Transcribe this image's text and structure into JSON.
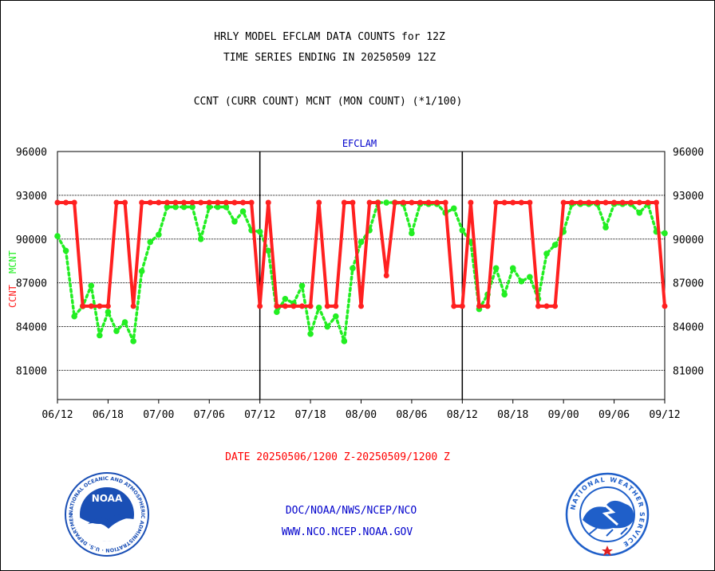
{
  "header": {
    "line1": "HRLY MODEL EFCLAM DATA COUNTS for 12Z",
    "line2": "TIME SERIES ENDING IN 20250509 12Z",
    "line3": "CCNT (CURR COUNT) MCNT (MON COUNT) (*1/100)"
  },
  "footer": {
    "date_range": "DATE 20250506/1200 Z-20250509/1200 Z",
    "org_path": "DOC/NOAA/NWS/NCEP/NCO",
    "website": "WWW.NCO.NCEP.NOAA.GOV"
  },
  "logos": {
    "left": {
      "name": "noaa-logo",
      "center_text": "NOAA",
      "ring_text": "NATIONAL OCEANIC AND ATMOSPHERIC ADMINISTRATION · U.S. DEPARTMENT OF COMMERCE"
    },
    "right": {
      "name": "nws-logo",
      "ring_text": "NATIONAL WEATHER SERVICE"
    }
  },
  "colors": {
    "ccnt": "#ff2020",
    "mcnt": "#22ee22",
    "panel_title": "#0000cc",
    "date_text": "#ff0000",
    "footer_text": "#0000cc",
    "noaa_blue": "#1a4fb5",
    "nws_blue": "#1f5fc9"
  },
  "chart_data": {
    "type": "line",
    "panel_title": "EFCLAM",
    "ylabel_ccnt": "CCNT",
    "ylabel_mcnt": "MCNT",
    "ylim": [
      79000,
      96000
    ],
    "yticks": [
      81000,
      84000,
      87000,
      90000,
      93000,
      96000
    ],
    "ytick_labels": [
      "81000",
      "84000",
      "87000",
      "90000",
      "93000",
      "96000"
    ],
    "xticks": [
      "06/12",
      "06/18",
      "07/00",
      "07/06",
      "07/12",
      "07/18",
      "08/00",
      "08/06",
      "08/12",
      "08/18",
      "09/00",
      "09/06",
      "09/12"
    ],
    "x_range_hours": [
      0,
      72
    ],
    "day_dividers_hours": [
      24,
      48
    ],
    "grid": "horizontal dotted",
    "series": [
      {
        "name": "CCNT",
        "values": [
          92500,
          92500,
          92500,
          85400,
          85400,
          85400,
          85400,
          92500,
          92500,
          85400,
          92500,
          92500,
          92500,
          92500,
          92500,
          92500,
          92500,
          92500,
          92500,
          92500,
          92500,
          92500,
          92500,
          92500,
          85400,
          92500,
          85400,
          85400,
          85400,
          85400,
          85400,
          92500,
          85400,
          85400,
          92500,
          92500,
          85400,
          92500,
          92500,
          87500,
          92500,
          92500,
          92500,
          92500,
          92500,
          92500,
          92500,
          85400,
          85400,
          92500,
          85400,
          85400,
          92500,
          92500,
          92500,
          92500,
          92500,
          85400,
          85400,
          85400,
          92500,
          92500,
          92500,
          92500,
          92500,
          92500,
          92500,
          92500,
          92500,
          92500,
          92500,
          92500,
          85400
        ]
      },
      {
        "name": "MCNT",
        "values": [
          90200,
          89200,
          84700,
          85400,
          86800,
          83400,
          85000,
          83700,
          84300,
          83000,
          87800,
          89800,
          90300,
          92200,
          92200,
          92200,
          92200,
          90000,
          92200,
          92200,
          92200,
          91200,
          91900,
          90600,
          90500,
          89200,
          85000,
          85900,
          85600,
          86800,
          83500,
          85300,
          84000,
          84700,
          83000,
          88000,
          89800,
          90600,
          92500,
          92500,
          92500,
          92400,
          90400,
          92400,
          92400,
          92400,
          91800,
          92100,
          90600,
          89800,
          85200,
          86200,
          88000,
          86200,
          88000,
          87100,
          87400,
          85900,
          89000,
          89600,
          90500,
          92400,
          92400,
          92400,
          92400,
          90800,
          92400,
          92400,
          92400,
          91800,
          92400,
          90500,
          90400
        ]
      }
    ]
  }
}
